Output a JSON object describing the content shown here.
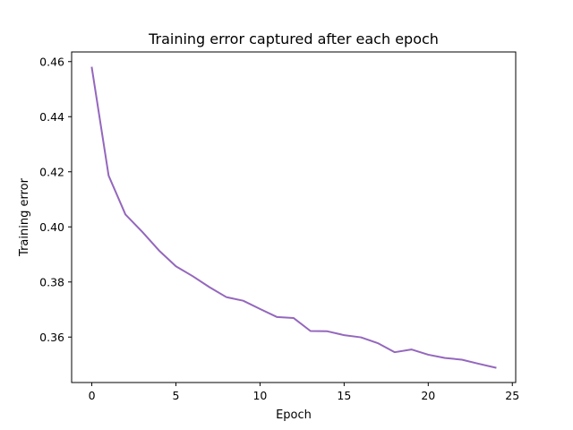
{
  "chart_data": {
    "type": "line",
    "title": "Training error captured after each epoch",
    "xlabel": "Epoch",
    "ylabel": "Training error",
    "xlim": [
      -1.2,
      25.2
    ],
    "ylim": [
      0.3435,
      0.4635
    ],
    "x_ticks": [
      0,
      5,
      10,
      15,
      20,
      25
    ],
    "y_ticks": [
      0.36,
      0.38,
      0.4,
      0.42,
      0.44,
      0.46
    ],
    "x_tick_labels": [
      "0",
      "5",
      "10",
      "15",
      "20",
      "25"
    ],
    "y_tick_labels": [
      "0.36",
      "0.38",
      "0.40",
      "0.42",
      "0.44",
      "0.46"
    ],
    "grid": false,
    "legend": "none",
    "series": [
      {
        "color": "#9467bd",
        "x": [
          0,
          1,
          2,
          3,
          4,
          5,
          6,
          7,
          8,
          9,
          10,
          11,
          12,
          13,
          14,
          15,
          16,
          17,
          18,
          19,
          20,
          21,
          22,
          23,
          24
        ],
        "y": [
          0.4578,
          0.4186,
          0.4045,
          0.3982,
          0.3914,
          0.3857,
          0.3821,
          0.3781,
          0.3745,
          0.3732,
          0.3702,
          0.3673,
          0.3669,
          0.3622,
          0.3621,
          0.3607,
          0.3599,
          0.3578,
          0.3545,
          0.3555,
          0.3536,
          0.3524,
          0.3518,
          0.3503,
          0.3489
        ]
      }
    ]
  }
}
